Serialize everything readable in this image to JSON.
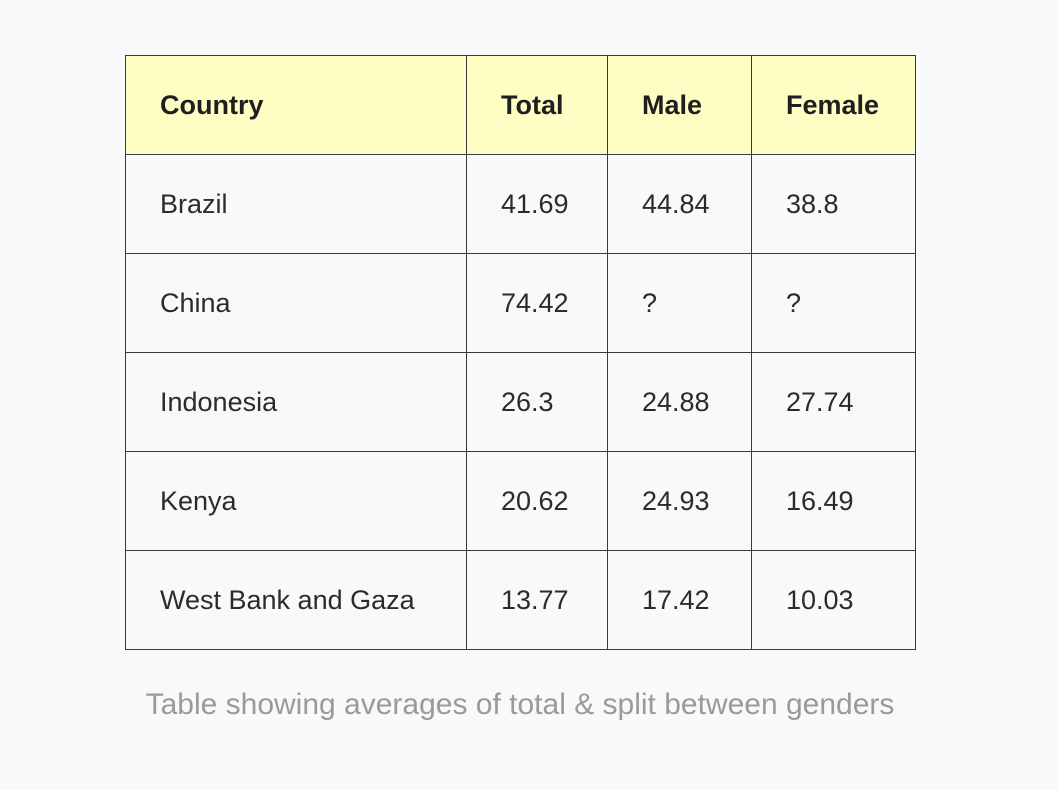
{
  "chart_data": {
    "type": "table",
    "columns": [
      "Country",
      "Total",
      "Male",
      "Female"
    ],
    "rows": [
      [
        "Brazil",
        "41.69",
        "44.84",
        "38.8"
      ],
      [
        "China",
        "74.42",
        "?",
        "?"
      ],
      [
        "Indonesia",
        "26.3",
        "24.88",
        "27.74"
      ],
      [
        "Kenya",
        "20.62",
        "24.93",
        "16.49"
      ],
      [
        "West Bank and Gaza",
        "13.77",
        "17.42",
        "10.03"
      ]
    ],
    "caption": "Table showing averages of total & split between genders"
  },
  "colors": {
    "header_background": "#fdfdc4",
    "page_background": "#f8f9fb",
    "caption_text": "#9a9a9a"
  }
}
